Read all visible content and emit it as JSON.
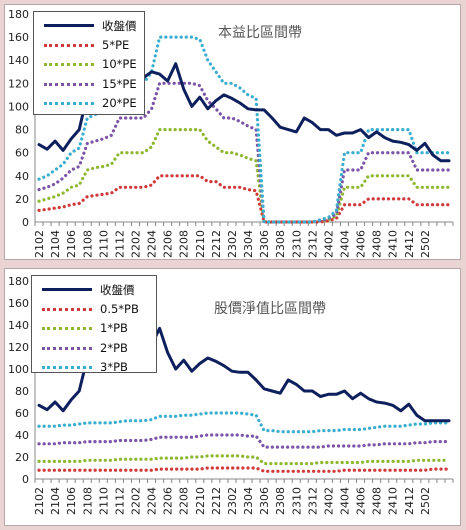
{
  "chart_data": [
    {
      "type": "line",
      "title": "本益比區間帶",
      "ylim": [
        0,
        180
      ],
      "yticks": [
        0,
        20,
        40,
        60,
        80,
        100,
        120,
        140,
        160,
        180
      ],
      "x_tick_labels": [
        "2102",
        "2104",
        "2106",
        "2108",
        "2110",
        "2112",
        "2202",
        "2204",
        "2206",
        "2208",
        "2210",
        "2212",
        "2302",
        "2304",
        "2306",
        "2308",
        "2310",
        "2312",
        "2402",
        "2404",
        "2406",
        "2408",
        "2410",
        "2412",
        "2502"
      ],
      "legend_position": "top-left",
      "series": [
        {
          "name": "收盤價",
          "color": "#0d1f5c",
          "style": "solid",
          "values": [
            67,
            63,
            70,
            62,
            72,
            80,
            110,
            130,
            135,
            135,
            150,
            130,
            140,
            125,
            130,
            128,
            122,
            137,
            115,
            100,
            108,
            98,
            105,
            110,
            107,
            103,
            98,
            97,
            97,
            90,
            82,
            80,
            78,
            90,
            86,
            80,
            80,
            75,
            77,
            77,
            80,
            73,
            78,
            73,
            70,
            69,
            67,
            62,
            68,
            58,
            53,
            53
          ]
        },
        {
          "name": "5*PE",
          "color": "#d13a3a",
          "style": "dotted",
          "values": [
            10,
            11,
            12,
            13,
            15,
            16,
            22,
            23,
            24,
            25,
            30,
            30,
            30,
            30,
            32,
            40,
            40,
            40,
            40,
            40,
            40,
            35,
            35,
            30,
            30,
            30,
            28,
            27,
            0,
            0,
            0,
            0,
            0,
            0,
            0,
            0,
            1,
            3,
            15,
            15,
            15,
            20,
            20,
            20,
            20,
            20,
            20,
            15,
            15,
            15,
            15,
            15
          ]
        },
        {
          "name": "10*PE",
          "color": "#8fb832",
          "style": "dotted",
          "values": [
            18,
            20,
            22,
            25,
            30,
            32,
            45,
            47,
            48,
            50,
            60,
            60,
            60,
            60,
            65,
            80,
            80,
            80,
            80,
            80,
            80,
            70,
            65,
            60,
            60,
            58,
            55,
            53,
            0,
            0,
            0,
            0,
            0,
            0,
            0,
            1,
            2,
            5,
            30,
            30,
            30,
            40,
            40,
            40,
            40,
            40,
            40,
            30,
            30,
            30,
            30,
            30
          ]
        },
        {
          "name": "15*PE",
          "color": "#7b55a8",
          "style": "dotted",
          "values": [
            28,
            30,
            33,
            38,
            45,
            48,
            68,
            70,
            72,
            75,
            90,
            90,
            90,
            90,
            98,
            120,
            120,
            120,
            120,
            120,
            118,
            105,
            98,
            90,
            90,
            87,
            83,
            80,
            0,
            0,
            0,
            0,
            0,
            0,
            0,
            1,
            3,
            7,
            45,
            45,
            45,
            60,
            60,
            60,
            60,
            60,
            60,
            45,
            45,
            45,
            45,
            45
          ]
        },
        {
          "name": "20*PE",
          "color": "#3aaecf",
          "style": "dotted",
          "values": [
            37,
            40,
            45,
            50,
            60,
            64,
            90,
            93,
            96,
            100,
            120,
            120,
            120,
            120,
            130,
            160,
            160,
            160,
            160,
            160,
            158,
            140,
            130,
            120,
            120,
            116,
            110,
            107,
            0,
            0,
            0,
            0,
            0,
            0,
            0,
            2,
            4,
            10,
            60,
            60,
            60,
            80,
            80,
            80,
            80,
            80,
            80,
            60,
            60,
            60,
            60,
            60
          ]
        }
      ]
    },
    {
      "type": "line",
      "title": "股價淨值比區間帶",
      "ylim": [
        0,
        180
      ],
      "yticks": [
        0,
        20,
        40,
        60,
        80,
        100,
        120,
        140,
        160,
        180
      ],
      "x_tick_labels": [
        "2102",
        "2104",
        "2106",
        "2108",
        "2110",
        "2112",
        "2202",
        "2204",
        "2206",
        "2208",
        "2210",
        "2212",
        "2302",
        "2304",
        "2306",
        "2308",
        "2310",
        "2312",
        "2402",
        "2404",
        "2406",
        "2408",
        "2410",
        "2412",
        "2502"
      ],
      "legend_position": "top-left",
      "series": [
        {
          "name": "收盤價",
          "color": "#0d1f5c",
          "style": "solid",
          "values": [
            67,
            63,
            70,
            62,
            72,
            80,
            110,
            130,
            135,
            135,
            150,
            130,
            140,
            125,
            122,
            137,
            115,
            100,
            108,
            98,
            105,
            110,
            107,
            103,
            98,
            97,
            97,
            90,
            82,
            80,
            78,
            90,
            86,
            80,
            80,
            75,
            77,
            77,
            80,
            73,
            78,
            73,
            70,
            69,
            67,
            62,
            68,
            58,
            53,
            53,
            53,
            53
          ]
        },
        {
          "name": "0.5*PB",
          "color": "#d13a3a",
          "style": "dotted",
          "values": [
            8,
            8,
            8,
            8,
            8,
            8,
            8,
            8,
            8,
            8,
            8,
            8,
            8,
            8,
            8,
            9,
            9,
            9,
            9,
            9,
            9,
            10,
            10,
            10,
            10,
            10,
            10,
            10,
            7,
            7,
            7,
            7,
            7,
            7,
            7,
            7,
            7,
            7,
            8,
            8,
            8,
            8,
            8,
            8,
            8,
            8,
            8,
            8,
            8,
            9,
            9,
            9
          ]
        },
        {
          "name": "1*PB",
          "color": "#8fb832",
          "style": "dotted",
          "values": [
            16,
            16,
            16,
            16,
            16,
            16,
            17,
            17,
            17,
            17,
            18,
            18,
            18,
            18,
            18,
            19,
            19,
            19,
            19,
            20,
            20,
            21,
            21,
            21,
            21,
            21,
            20,
            20,
            14,
            14,
            14,
            14,
            14,
            14,
            14,
            15,
            15,
            15,
            15,
            15,
            15,
            16,
            16,
            16,
            16,
            16,
            16,
            17,
            17,
            17,
            17,
            17
          ]
        },
        {
          "name": "2*PB",
          "color": "#7b55a8",
          "style": "dotted",
          "values": [
            32,
            32,
            32,
            33,
            33,
            33,
            34,
            34,
            34,
            34,
            35,
            35,
            35,
            35,
            36,
            38,
            38,
            38,
            38,
            38,
            39,
            40,
            40,
            40,
            40,
            40,
            39,
            39,
            29,
            29,
            29,
            29,
            29,
            29,
            29,
            29,
            30,
            30,
            30,
            30,
            30,
            31,
            31,
            32,
            32,
            32,
            32,
            33,
            33,
            34,
            34,
            34
          ]
        },
        {
          "name": "3*PB",
          "color": "#3aaecf",
          "style": "dotted",
          "values": [
            48,
            48,
            48,
            49,
            49,
            50,
            51,
            51,
            51,
            51,
            52,
            53,
            53,
            53,
            54,
            57,
            57,
            57,
            58,
            58,
            59,
            60,
            60,
            60,
            60,
            60,
            59,
            58,
            44,
            44,
            43,
            43,
            43,
            43,
            43,
            44,
            44,
            44,
            45,
            45,
            45,
            46,
            47,
            48,
            48,
            48,
            49,
            50,
            50,
            51,
            51,
            51
          ]
        }
      ]
    }
  ]
}
